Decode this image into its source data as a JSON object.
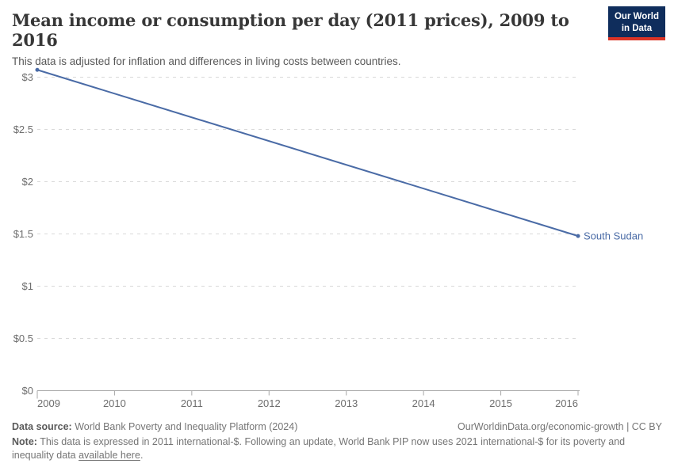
{
  "header": {
    "title": "Mean income or consumption per day (2011 prices), 2009 to 2016",
    "subtitle": "This data is adjusted for inflation and differences in living costs between countries.",
    "logo": {
      "line1": "Our World",
      "line2": "in Data",
      "bg_color": "#0f2d5c",
      "stripe_color": "#dc3426"
    }
  },
  "chart_data": {
    "type": "line",
    "title": "Mean income or consumption per day (2011 prices), 2009 to 2016",
    "x": [
      2009,
      2016
    ],
    "series": [
      {
        "name": "South Sudan",
        "color": "#4a6ba6",
        "x": [
          2009,
          2016
        ],
        "values": [
          3.07,
          1.48
        ]
      }
    ],
    "xlabel": "",
    "ylabel": "",
    "xlim": [
      2009,
      2016
    ],
    "ylim": [
      0,
      3.1
    ],
    "grid": true,
    "gridline_style": "dashed",
    "legend_position": "entity-label-at-line-end",
    "x_ticks": [
      "2009",
      "2010",
      "2011",
      "2012",
      "2013",
      "2014",
      "2015",
      "2016"
    ],
    "y_ticks": [
      {
        "value": 0,
        "label": "$0"
      },
      {
        "value": 0.5,
        "label": "$0.5"
      },
      {
        "value": 1,
        "label": "$1"
      },
      {
        "value": 1.5,
        "label": "$1.5"
      },
      {
        "value": 2,
        "label": "$2"
      },
      {
        "value": 2.5,
        "label": "$2.5"
      },
      {
        "value": 3,
        "label": "$3"
      }
    ]
  },
  "footer": {
    "source_label": "Data source:",
    "source_text": " World Bank Poverty and Inequality Platform (2024)",
    "license_text": "OurWorldinData.org/economic-growth | CC BY",
    "note_label": "Note:",
    "note_text_1": " This data is expressed in 2011 international-$. Following an update, World Bank PIP now uses 2021 international-$ for its poverty and inequality data ",
    "note_link": "available here",
    "note_text_2": "."
  }
}
